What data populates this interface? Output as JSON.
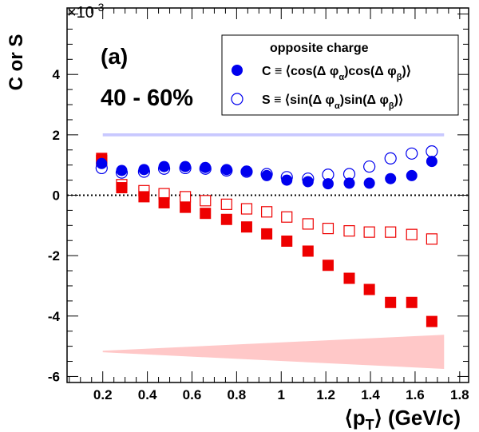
{
  "chart_data": {
    "type": "scatter",
    "ylabel": "C or S",
    "xlabel": {
      "main": "⟨p",
      "sub": "T",
      "tail": "⟩ (GeV/c)"
    },
    "exponent_label": {
      "base": "×10",
      "exp": "-3"
    },
    "panel_label": "(a)",
    "centrality": "40 - 60%",
    "xlim": [
      0.04,
      1.84
    ],
    "ylim": [
      -6.2,
      6.2
    ],
    "x_ticks": [
      0.2,
      0.4,
      0.6,
      0.8,
      1,
      1.2,
      1.4,
      1.6,
      1.8
    ],
    "x_tick_labels": [
      "0.2",
      "0.4",
      "0.6",
      "0.8",
      "1",
      "1.2",
      "1.4",
      "1.6",
      "1.8"
    ],
    "y_ticks": [
      -6,
      -4,
      -2,
      0,
      2,
      4
    ],
    "y_tick_labels": [
      "-6",
      "-4",
      "-2",
      "0",
      "2",
      "4"
    ],
    "legend": {
      "title": "opposite charge",
      "placement": "top-right",
      "entries": [
        {
          "lead": "C ≡ ⟨cos(Δ φ",
          "sub1": "α",
          "mid": ")cos(Δ φ",
          "sub2": "β",
          "tail": ")⟩"
        },
        {
          "lead": "S ≡ ⟨sin(Δ φ",
          "sub1": "α",
          "mid": ")sin(Δ φ",
          "sub2": "β",
          "tail": ")⟩"
        }
      ]
    },
    "colors": {
      "blue": "#0000ee",
      "red": "#ee0000",
      "blue_band": "#c8c8ff",
      "red_band": "#ffc8c8"
    },
    "series": [
      {
        "key": "C_blue",
        "marker": "circle-filled",
        "color": "#0000ee",
        "x": [
          0.195,
          0.285,
          0.385,
          0.475,
          0.57,
          0.66,
          0.755,
          0.845,
          0.935,
          1.025,
          1.12,
          1.21,
          1.305,
          1.395,
          1.49,
          1.585,
          1.675
        ],
        "y": [
          1.05,
          0.82,
          0.85,
          0.95,
          0.95,
          0.92,
          0.85,
          0.8,
          0.65,
          0.5,
          0.45,
          0.38,
          0.4,
          0.4,
          0.55,
          0.65,
          1.12
        ]
      },
      {
        "key": "S_blue",
        "marker": "circle-open",
        "color": "#0000ee",
        "x": [
          0.195,
          0.285,
          0.385,
          0.475,
          0.57,
          0.66,
          0.755,
          0.845,
          0.935,
          1.025,
          1.12,
          1.21,
          1.305,
          1.395,
          1.49,
          1.585,
          1.675
        ],
        "y": [
          0.9,
          0.75,
          0.78,
          0.88,
          0.9,
          0.88,
          0.82,
          0.78,
          0.7,
          0.6,
          0.55,
          0.68,
          0.7,
          0.95,
          1.22,
          1.38,
          1.45
        ]
      },
      {
        "key": "C_red",
        "marker": "square-filled",
        "color": "#ee0000",
        "x": [
          0.195,
          0.285,
          0.385,
          0.475,
          0.57,
          0.66,
          0.755,
          0.845,
          0.935,
          1.025,
          1.12,
          1.21,
          1.305,
          1.395,
          1.49,
          1.585,
          1.675
        ],
        "y": [
          1.22,
          0.25,
          -0.05,
          -0.25,
          -0.4,
          -0.6,
          -0.8,
          -1.05,
          -1.28,
          -1.52,
          -1.85,
          -2.32,
          -2.75,
          -3.12,
          -3.55,
          -3.55,
          -4.18
        ]
      },
      {
        "key": "S_red",
        "marker": "square-open",
        "color": "#ee0000",
        "x": [
          0.195,
          0.285,
          0.385,
          0.475,
          0.57,
          0.66,
          0.755,
          0.845,
          0.935,
          1.025,
          1.12,
          1.21,
          1.305,
          1.395,
          1.49,
          1.585,
          1.675
        ],
        "y": [
          1.15,
          0.35,
          0.15,
          0.05,
          -0.05,
          -0.18,
          -0.3,
          -0.45,
          -0.55,
          -0.72,
          -0.95,
          -1.1,
          -1.18,
          -1.22,
          -1.22,
          -1.3,
          -1.45
        ]
      }
    ],
    "bands": [
      {
        "key": "blue_band",
        "color": "#c8c8ff",
        "x": [
          0.2,
          1.73
        ],
        "y_top": [
          2.05,
          2.05
        ],
        "y_bottom": [
          1.95,
          1.95
        ]
      },
      {
        "key": "red_band",
        "color": "#ffc8c8",
        "x": [
          0.2,
          1.73
        ],
        "y_top": [
          -5.15,
          -4.62
        ],
        "y_bottom": [
          -5.2,
          -5.75
        ]
      }
    ]
  }
}
